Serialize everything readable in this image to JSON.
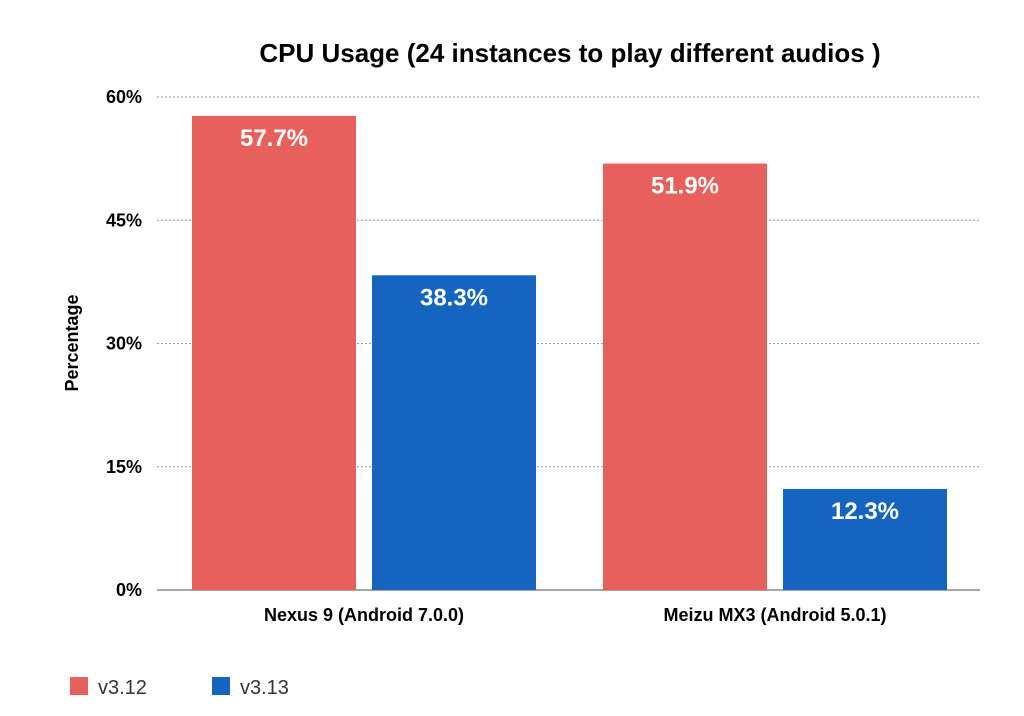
{
  "chart_data": {
    "type": "bar",
    "title": "CPU Usage (24 instances to play different audios )",
    "xlabel": "",
    "ylabel": "Percentage",
    "categories": [
      "Nexus 9 (Android 7.0.0)",
      "Meizu MX3 (Android 5.0.1)"
    ],
    "series": [
      {
        "name": "v3.12",
        "color": "#E8605C",
        "values": [
          57.7,
          51.9
        ],
        "labels": [
          "57.7%",
          "51.9%"
        ]
      },
      {
        "name": "v3.13",
        "color": "#1565C0",
        "values": [
          38.3,
          12.3
        ],
        "labels": [
          "38.3%",
          "12.3%"
        ]
      }
    ],
    "ylim": [
      0,
      60
    ],
    "yticks": [
      0,
      15,
      30,
      45,
      60
    ],
    "ytick_labels": [
      "0%",
      "15%",
      "30%",
      "45%",
      "60%"
    ],
    "grid": true,
    "legend_position": "bottom-left"
  }
}
